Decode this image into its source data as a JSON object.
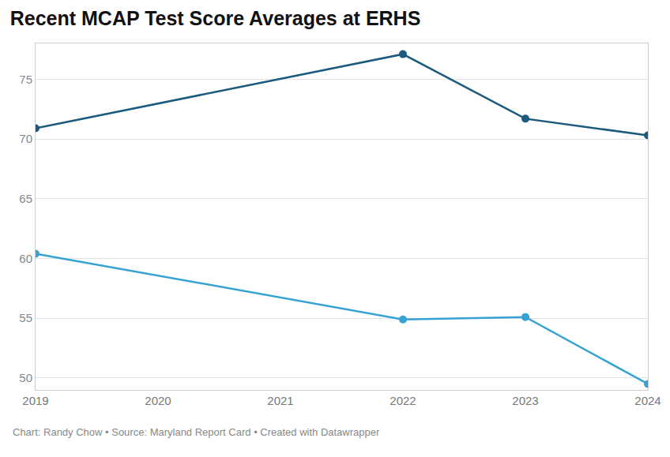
{
  "chart_data": {
    "type": "line",
    "title": "Recent MCAP Test Score Averages at ERHS",
    "source": "Chart: Randy Chow • Source: Maryland Report Card • Created with Datawrapper",
    "x": [
      2019,
      2022,
      2023,
      2024
    ],
    "series": [
      {
        "color": "#1b5a7c",
        "values": [
          70.9,
          77.1,
          71.7,
          70.3
        ]
      },
      {
        "color": "#36a2d2",
        "values": [
          60.4,
          54.9,
          55.1,
          49.5
        ]
      }
    ],
    "xlim": [
      2019,
      2024
    ],
    "xticks": [
      2019,
      2020,
      2021,
      2022,
      2023,
      2024
    ],
    "ylim": [
      49,
      78
    ],
    "yticks": [
      50,
      55,
      60,
      65,
      70,
      75
    ],
    "grid": true,
    "marker": "circle",
    "line_style": "solid"
  }
}
